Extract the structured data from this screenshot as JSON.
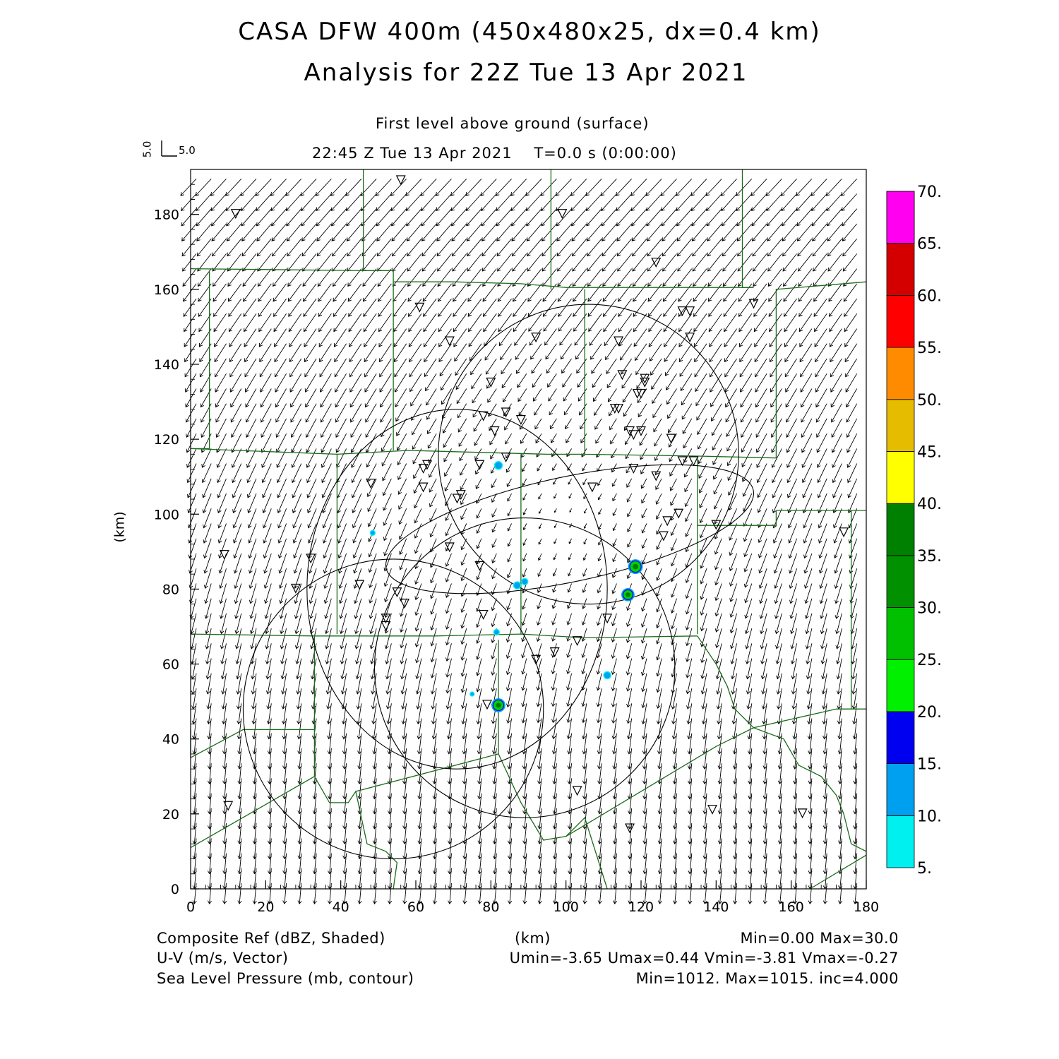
{
  "header": {
    "title_line1": "CASA DFW 400m (450x480x25, dx=0.4 km)",
    "title_line2": "Analysis for 22Z Tue 13 Apr 2021",
    "level": "First level above ground (surface)",
    "time": "22:45 Z Tue 13 Apr 2021    T=0.0 s (0:00:00)",
    "vector_key_u": "5.0",
    "vector_key_v": "5.0"
  },
  "axes": {
    "xlabel": "(km)",
    "ylabel": "(km)",
    "x_ticks": [
      "0",
      "20",
      "40",
      "60",
      "80",
      "100",
      "120",
      "140",
      "160",
      "180"
    ],
    "y_ticks": [
      "0",
      "20",
      "40",
      "60",
      "80",
      "100",
      "120",
      "140",
      "160",
      "180"
    ],
    "xlim": [
      0,
      180
    ],
    "ylim": [
      0,
      192
    ]
  },
  "colorbar": {
    "labels": [
      "5.",
      "10.",
      "15.",
      "20.",
      "25.",
      "30.",
      "35.",
      "40.",
      "45.",
      "50.",
      "55.",
      "60.",
      "65.",
      "70."
    ],
    "colors": [
      "#00f0f0",
      "#00a0f0",
      "#0000f0",
      "#00f000",
      "#00c000",
      "#009000",
      "#008000",
      "#ffff00",
      "#e6bc00",
      "#ff8c00",
      "#ff0000",
      "#d40000",
      "#b80000",
      "#ff00f0"
    ]
  },
  "footer": {
    "field1_name": "Composite Ref (dBZ, Shaded)",
    "field1_range": "Min=0.00 Max=30.0",
    "field2_name": "U-V (m/s, Vector)",
    "field2_range": "Umin=-3.65 Umax=0.44 Vmin=-3.81 Vmax=-0.27",
    "field3_name": "Sea Level Pressure (mb, contour)",
    "field3_range": "Min=1012. Max=1015. inc=4.000",
    "xunit": "(km)"
  },
  "map_data": {
    "county_lines": [
      [
        [
          0,
          165.5
        ],
        [
          46,
          165
        ],
        [
          54,
          165
        ],
        [
          54,
          162
        ],
        [
          70,
          162
        ],
        [
          88,
          161.5
        ],
        [
          100,
          160.5
        ],
        [
          150,
          160.5
        ]
      ],
      [
        [
          46,
          192
        ],
        [
          46,
          165
        ]
      ],
      [
        [
          96,
          192
        ],
        [
          96,
          160
        ]
      ],
      [
        [
          147,
          192
        ],
        [
          147,
          160.5
        ],
        [
          150,
          160.5
        ]
      ],
      [
        [
          5,
          165
        ],
        [
          5,
          117.5
        ],
        [
          0,
          117.5
        ]
      ],
      [
        [
          54,
          162
        ],
        [
          54,
          117
        ]
      ],
      [
        [
          105,
          160
        ],
        [
          105,
          116
        ],
        [
          135,
          115.5
        ],
        [
          156,
          115
        ],
        [
          156,
          160
        ],
        [
          180,
          162
        ]
      ],
      [
        [
          0,
          117.5
        ],
        [
          39,
          116
        ],
        [
          58,
          117
        ],
        [
          95,
          116
        ],
        [
          105,
          116
        ]
      ],
      [
        [
          39,
          116
        ],
        [
          39,
          68
        ]
      ],
      [
        [
          88,
          116
        ],
        [
          88,
          68
        ]
      ],
      [
        [
          135,
          115.5
        ],
        [
          135,
          68
        ]
      ],
      [
        [
          156,
          101
        ],
        [
          180,
          101
        ]
      ],
      [
        [
          135,
          97
        ],
        [
          156,
          97
        ],
        [
          156,
          101
        ]
      ],
      [
        [
          0,
          68
        ],
        [
          33,
          67.5
        ],
        [
          65,
          67.5
        ],
        [
          88,
          68
        ],
        [
          105,
          67
        ],
        [
          135,
          67.5
        ]
      ],
      [
        [
          33,
          67.5
        ],
        [
          33,
          42.5
        ],
        [
          14,
          42.5
        ],
        [
          0,
          35
        ]
      ],
      [
        [
          82,
          66.5
        ],
        [
          82,
          36
        ]
      ],
      [
        [
          0,
          42.5
        ],
        [
          0,
          35
        ]
      ],
      [
        [
          33,
          42.5
        ],
        [
          33,
          30
        ]
      ],
      [
        [
          0,
          11
        ],
        [
          33,
          30
        ],
        [
          37,
          23
        ],
        [
          42,
          23
        ],
        [
          44,
          26
        ],
        [
          47,
          12
        ],
        [
          52,
          10
        ],
        [
          55,
          7
        ],
        [
          54,
          0
        ]
      ],
      [
        [
          44,
          26
        ],
        [
          82,
          36
        ],
        [
          88,
          23
        ],
        [
          94,
          13
        ],
        [
          100,
          14
        ],
        [
          105,
          19
        ],
        [
          111,
          0
        ]
      ],
      [
        [
          100,
          14
        ],
        [
          140,
          38
        ],
        [
          150,
          43
        ],
        [
          172,
          48
        ],
        [
          180,
          48
        ]
      ],
      [
        [
          135,
          67.5
        ],
        [
          140,
          60
        ],
        [
          143,
          54
        ],
        [
          145,
          48
        ],
        [
          150,
          43
        ],
        [
          158,
          40
        ],
        [
          162,
          33
        ],
        [
          168,
          30
        ],
        [
          172,
          25
        ],
        [
          174,
          20
        ],
        [
          176,
          12
        ],
        [
          180,
          10
        ]
      ],
      [
        [
          165,
          0
        ],
        [
          180,
          9
        ]
      ],
      [
        [
          176,
          101
        ],
        [
          176,
          48
        ]
      ],
      [
        [
          172,
          48
        ],
        [
          180,
          48
        ]
      ]
    ],
    "pressure_contours": [
      {
        "cx": 106,
        "cy": 116,
        "rx": 40,
        "ry": 40
      },
      {
        "cx": 71,
        "cy": 80,
        "rx": 40,
        "ry": 48
      },
      {
        "cx": 89,
        "cy": 59,
        "rx": 40,
        "ry": 40
      },
      {
        "cx": 54,
        "cy": 48,
        "rx": 40,
        "ry": 40
      },
      {
        "cx": 101,
        "cy": 96,
        "rx": 50,
        "ry": 14,
        "rot": -12
      }
    ],
    "stations": [
      [
        56,
        189
      ],
      [
        12,
        180
      ],
      [
        99,
        180
      ],
      [
        124,
        167
      ],
      [
        61,
        155
      ],
      [
        150,
        156
      ],
      [
        131,
        154
      ],
      [
        133,
        154
      ],
      [
        133,
        147
      ],
      [
        69,
        146
      ],
      [
        92,
        147
      ],
      [
        114,
        146
      ],
      [
        115,
        137
      ],
      [
        121,
        136
      ],
      [
        121,
        135
      ],
      [
        80,
        135
      ],
      [
        113,
        128
      ],
      [
        114,
        128
      ],
      [
        119,
        132
      ],
      [
        120,
        132
      ],
      [
        84,
        127
      ],
      [
        78,
        126
      ],
      [
        88,
        125
      ],
      [
        81,
        122
      ],
      [
        117,
        122
      ],
      [
        120,
        122
      ],
      [
        118,
        121
      ],
      [
        128,
        120
      ],
      [
        131,
        114
      ],
      [
        134,
        114
      ],
      [
        84,
        115
      ],
      [
        77,
        113
      ],
      [
        63,
        113
      ],
      [
        62,
        112
      ],
      [
        62,
        107
      ],
      [
        48,
        108
      ],
      [
        72,
        105
      ],
      [
        71,
        104
      ],
      [
        107,
        107
      ],
      [
        118,
        112
      ],
      [
        124,
        110
      ],
      [
        127,
        98
      ],
      [
        130,
        100
      ],
      [
        140,
        97
      ],
      [
        126,
        94
      ],
      [
        174,
        95
      ],
      [
        9,
        89
      ],
      [
        32,
        88
      ],
      [
        69,
        91
      ],
      [
        77,
        86
      ],
      [
        45,
        81
      ],
      [
        28,
        80
      ],
      [
        55,
        79
      ],
      [
        57,
        76
      ],
      [
        52,
        72
      ],
      [
        52,
        70
      ],
      [
        78,
        73
      ],
      [
        103,
        66
      ],
      [
        111,
        72
      ],
      [
        97,
        63
      ],
      [
        92,
        61
      ],
      [
        79,
        49
      ],
      [
        103,
        26
      ],
      [
        10,
        22
      ],
      [
        139,
        21
      ],
      [
        163,
        20
      ],
      [
        117,
        16
      ]
    ],
    "echoes": [
      {
        "x": 118.5,
        "y": 86,
        "r": 1.4,
        "dbz": 30
      },
      {
        "x": 116.5,
        "y": 78.5,
        "r": 1.2,
        "dbz": 30
      },
      {
        "x": 82,
        "y": 49,
        "r": 1.3,
        "dbz": 30
      },
      {
        "x": 82,
        "y": 113,
        "r": 0.9,
        "dbz": 10
      },
      {
        "x": 87,
        "y": 81,
        "r": 0.8,
        "dbz": 10
      },
      {
        "x": 89,
        "y": 82,
        "r": 0.7,
        "dbz": 10
      },
      {
        "x": 111,
        "y": 57,
        "r": 0.8,
        "dbz": 10
      },
      {
        "x": 81.5,
        "y": 68.5,
        "r": 0.6,
        "dbz": 10
      },
      {
        "x": 48.5,
        "y": 95,
        "r": 0.5,
        "dbz": 10
      },
      {
        "x": 75,
        "y": 52,
        "r": 0.4,
        "dbz": 10
      }
    ]
  }
}
